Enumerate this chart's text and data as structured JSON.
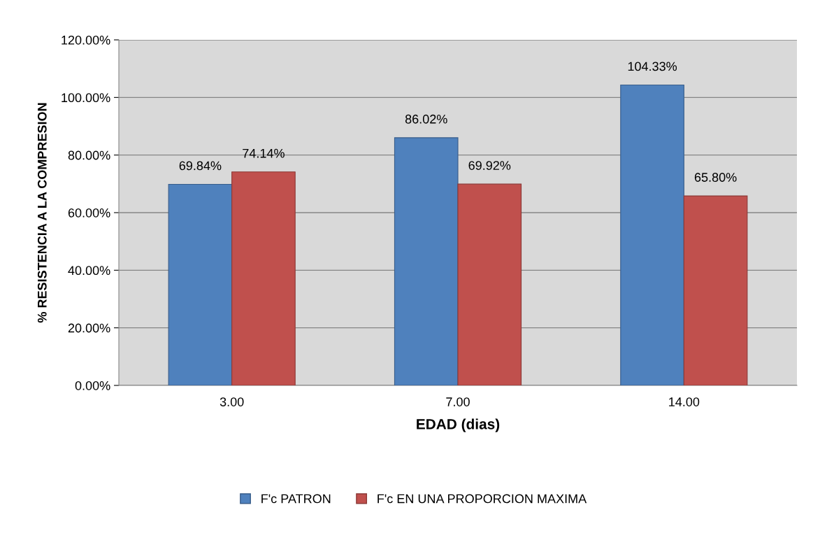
{
  "chart_data": {
    "type": "bar",
    "xlabel": "EDAD (dias)",
    "ylabel": "% RESISTENCIA A LA COMPRESION",
    "categories": [
      "3.00",
      "7.00",
      "14.00"
    ],
    "series": [
      {
        "name": "F'c PATRON",
        "color": "#4f81bd",
        "values": [
          69.84,
          86.02,
          104.33
        ],
        "value_labels": [
          "69.84%",
          "86.02%",
          "104.33%"
        ]
      },
      {
        "name": "F'c EN UNA PROPORCION MAXIMA",
        "color": "#c0504d",
        "values": [
          74.14,
          69.92,
          65.8
        ],
        "value_labels": [
          "74.14%",
          "69.92%",
          "65.80%"
        ]
      }
    ],
    "ylim": [
      0,
      120
    ],
    "yticks": [
      {
        "value": 0,
        "label": "0.00%"
      },
      {
        "value": 20,
        "label": "20.00%"
      },
      {
        "value": 40,
        "label": "40.00%"
      },
      {
        "value": 60,
        "label": "60.00%"
      },
      {
        "value": 80,
        "label": "80.00%"
      },
      {
        "value": 100,
        "label": "100.00%"
      },
      {
        "value": 120,
        "label": "120.00%"
      }
    ],
    "grid": "y",
    "legend": "bottom"
  }
}
